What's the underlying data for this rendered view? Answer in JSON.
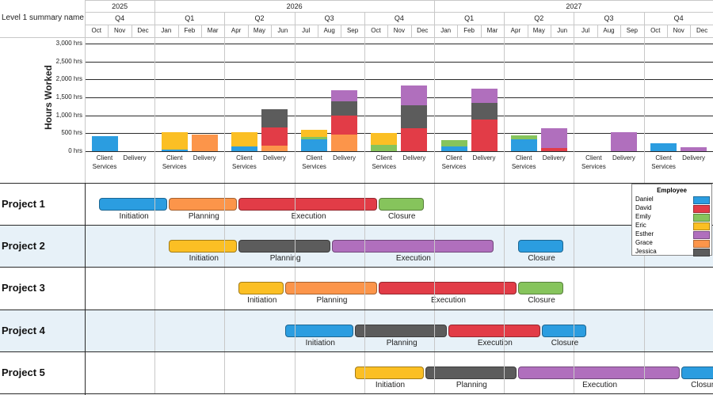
{
  "header": {
    "summary_label": "Level 1 summary name",
    "years": [
      "2025",
      "2026",
      "2027"
    ],
    "quarters": [
      "Q4",
      "Q1",
      "Q2",
      "Q3",
      "Q4",
      "Q1",
      "Q2",
      "Q3",
      "Q4"
    ],
    "months": [
      "Oct",
      "Nov",
      "Dec",
      "Jan",
      "Feb",
      "Mar",
      "Apr",
      "May",
      "Jun",
      "Jul",
      "Aug",
      "Sep",
      "Oct",
      "Nov",
      "Dec",
      "Jan",
      "Feb",
      "Mar",
      "Apr",
      "May",
      "Jun",
      "Jul",
      "Aug",
      "Sep",
      "Oct",
      "Nov",
      "Dec"
    ]
  },
  "colors": {
    "Daniel": "#2b9de0",
    "David": "#e23c47",
    "Emily": "#86c45c",
    "Eric": "#fbbf24",
    "Esther": "#b06fbd",
    "Grace": "#fc954a",
    "Jessica": "#5c5c5c"
  },
  "legend": {
    "title": "Employee",
    "items": [
      "Daniel",
      "David",
      "Emily",
      "Eric",
      "Esther",
      "Grace",
      "Jessica"
    ]
  },
  "chart_data": {
    "type": "bar",
    "stacked": true,
    "ylabel": "Hours Worked",
    "ylim": [
      0,
      3000
    ],
    "yticks": [
      "0 hrs",
      "500 hrs",
      "1,000 hrs",
      "1,500 hrs",
      "2,000 hrs",
      "2,500 hrs",
      "3,000 hrs"
    ],
    "quarters": [
      "Q4 2025",
      "Q1 2026",
      "Q2 2026",
      "Q3 2026",
      "Q4 2026",
      "Q1 2027",
      "Q2 2027",
      "Q3 2027",
      "Q4 2027"
    ],
    "category_labels": [
      "Client Services",
      "Delivery"
    ],
    "bars": [
      {
        "quarter": 0,
        "category": 0,
        "segments": [
          {
            "employee": "Daniel",
            "value": 420
          }
        ]
      },
      {
        "quarter": 0,
        "category": 1,
        "segments": []
      },
      {
        "quarter": 1,
        "category": 0,
        "segments": [
          {
            "employee": "Daniel",
            "value": 50
          },
          {
            "employee": "Eric",
            "value": 480
          }
        ]
      },
      {
        "quarter": 1,
        "category": 1,
        "segments": [
          {
            "employee": "Grace",
            "value": 460
          }
        ]
      },
      {
        "quarter": 2,
        "category": 0,
        "segments": [
          {
            "employee": "Daniel",
            "value": 130
          },
          {
            "employee": "Eric",
            "value": 400
          }
        ]
      },
      {
        "quarter": 2,
        "category": 1,
        "segments": [
          {
            "employee": "Grace",
            "value": 160
          },
          {
            "employee": "David",
            "value": 500
          },
          {
            "employee": "Jessica",
            "value": 500
          }
        ]
      },
      {
        "quarter": 3,
        "category": 0,
        "segments": [
          {
            "employee": "Daniel",
            "value": 340
          },
          {
            "employee": "Emily",
            "value": 60
          },
          {
            "employee": "Eric",
            "value": 200
          }
        ]
      },
      {
        "quarter": 3,
        "category": 1,
        "segments": [
          {
            "employee": "Grace",
            "value": 460
          },
          {
            "employee": "David",
            "value": 540
          },
          {
            "employee": "Jessica",
            "value": 400
          },
          {
            "employee": "Esther",
            "value": 300
          }
        ]
      },
      {
        "quarter": 4,
        "category": 0,
        "segments": [
          {
            "employee": "Emily",
            "value": 170
          },
          {
            "employee": "Eric",
            "value": 330
          }
        ]
      },
      {
        "quarter": 4,
        "category": 1,
        "segments": [
          {
            "employee": "David",
            "value": 640
          },
          {
            "employee": "Jessica",
            "value": 640
          },
          {
            "employee": "Esther",
            "value": 540
          }
        ]
      },
      {
        "quarter": 5,
        "category": 0,
        "segments": [
          {
            "employee": "Daniel",
            "value": 140
          },
          {
            "employee": "Emily",
            "value": 160
          }
        ]
      },
      {
        "quarter": 5,
        "category": 1,
        "segments": [
          {
            "employee": "David",
            "value": 880
          },
          {
            "employee": "Jessica",
            "value": 470
          },
          {
            "employee": "Esther",
            "value": 400
          }
        ]
      },
      {
        "quarter": 6,
        "category": 0,
        "segments": [
          {
            "employee": "Daniel",
            "value": 320
          },
          {
            "employee": "Emily",
            "value": 120
          }
        ]
      },
      {
        "quarter": 6,
        "category": 1,
        "segments": [
          {
            "employee": "David",
            "value": 80
          },
          {
            "employee": "Esther",
            "value": 550
          }
        ]
      },
      {
        "quarter": 7,
        "category": 0,
        "segments": []
      },
      {
        "quarter": 7,
        "category": 1,
        "segments": [
          {
            "employee": "Esther",
            "value": 520
          }
        ]
      },
      {
        "quarter": 8,
        "category": 0,
        "segments": [
          {
            "employee": "Daniel",
            "value": 230
          }
        ]
      },
      {
        "quarter": 8,
        "category": 1,
        "segments": [
          {
            "employee": "Esther",
            "value": 120
          }
        ]
      }
    ]
  },
  "projects": [
    {
      "name": "Project 1",
      "tasks": [
        {
          "name": "Initiation",
          "start": "Oct 2025",
          "end": "Dec 2025",
          "color_key": "Daniel"
        },
        {
          "name": "Planning",
          "start": "Jan 2026",
          "end": "Mar 2026",
          "color_key": "Grace"
        },
        {
          "name": "Execution",
          "start": "Apr 2026",
          "end": "Sep 2026",
          "color_key": "David"
        },
        {
          "name": "Closure",
          "start": "Oct 2026",
          "end": "Nov 2026",
          "color_key": "Emily"
        }
      ]
    },
    {
      "name": "Project 2",
      "tasks": [
        {
          "name": "Initiation",
          "start": "Jan 2026",
          "end": "Mar 2026",
          "color_key": "Eric"
        },
        {
          "name": "Planning",
          "start": "Apr 2026",
          "end": "Jul 2026",
          "color_key": "Jessica"
        },
        {
          "name": "Execution",
          "start": "Aug 2026",
          "end": "Feb 2027",
          "color_key": "Esther"
        },
        {
          "name": "Closure",
          "start": "Apr 2027",
          "end": "May 2027",
          "color_key": "Daniel"
        }
      ]
    },
    {
      "name": "Project 3",
      "tasks": [
        {
          "name": "Initiation",
          "start": "Apr 2026",
          "end": "May 2026",
          "color_key": "Eric"
        },
        {
          "name": "Planning",
          "start": "Jun 2026",
          "end": "Sep 2026",
          "color_key": "Grace"
        },
        {
          "name": "Execution",
          "start": "Oct 2026",
          "end": "Mar 2027",
          "color_key": "David"
        },
        {
          "name": "Closure",
          "start": "Apr 2027",
          "end": "May 2027",
          "color_key": "Emily"
        }
      ]
    },
    {
      "name": "Project 4",
      "tasks": [
        {
          "name": "Initiation",
          "start": "Jun 2026",
          "end": "Aug 2026",
          "color_key": "Daniel"
        },
        {
          "name": "Planning",
          "start": "Sep 2026",
          "end": "Dec 2026",
          "color_key": "Jessica"
        },
        {
          "name": "Execution",
          "start": "Jan 2027",
          "end": "Apr 2027",
          "color_key": "David"
        },
        {
          "name": "Closure",
          "start": "May 2027",
          "end": "Jun 2027",
          "color_key": "Daniel"
        }
      ]
    },
    {
      "name": "Project 5",
      "tasks": [
        {
          "name": "Initiation",
          "start": "Sep 2026",
          "end": "Nov 2026",
          "color_key": "Eric"
        },
        {
          "name": "Planning",
          "start": "Dec 2026",
          "end": "Mar 2027",
          "color_key": "Jessica"
        },
        {
          "name": "Execution",
          "start": "Apr 2027",
          "end": "Oct 2027",
          "color_key": "Esther"
        },
        {
          "name": "Closure",
          "start": "Nov 2027",
          "end": "Dec 2027",
          "color_key": "Daniel"
        }
      ]
    }
  ]
}
